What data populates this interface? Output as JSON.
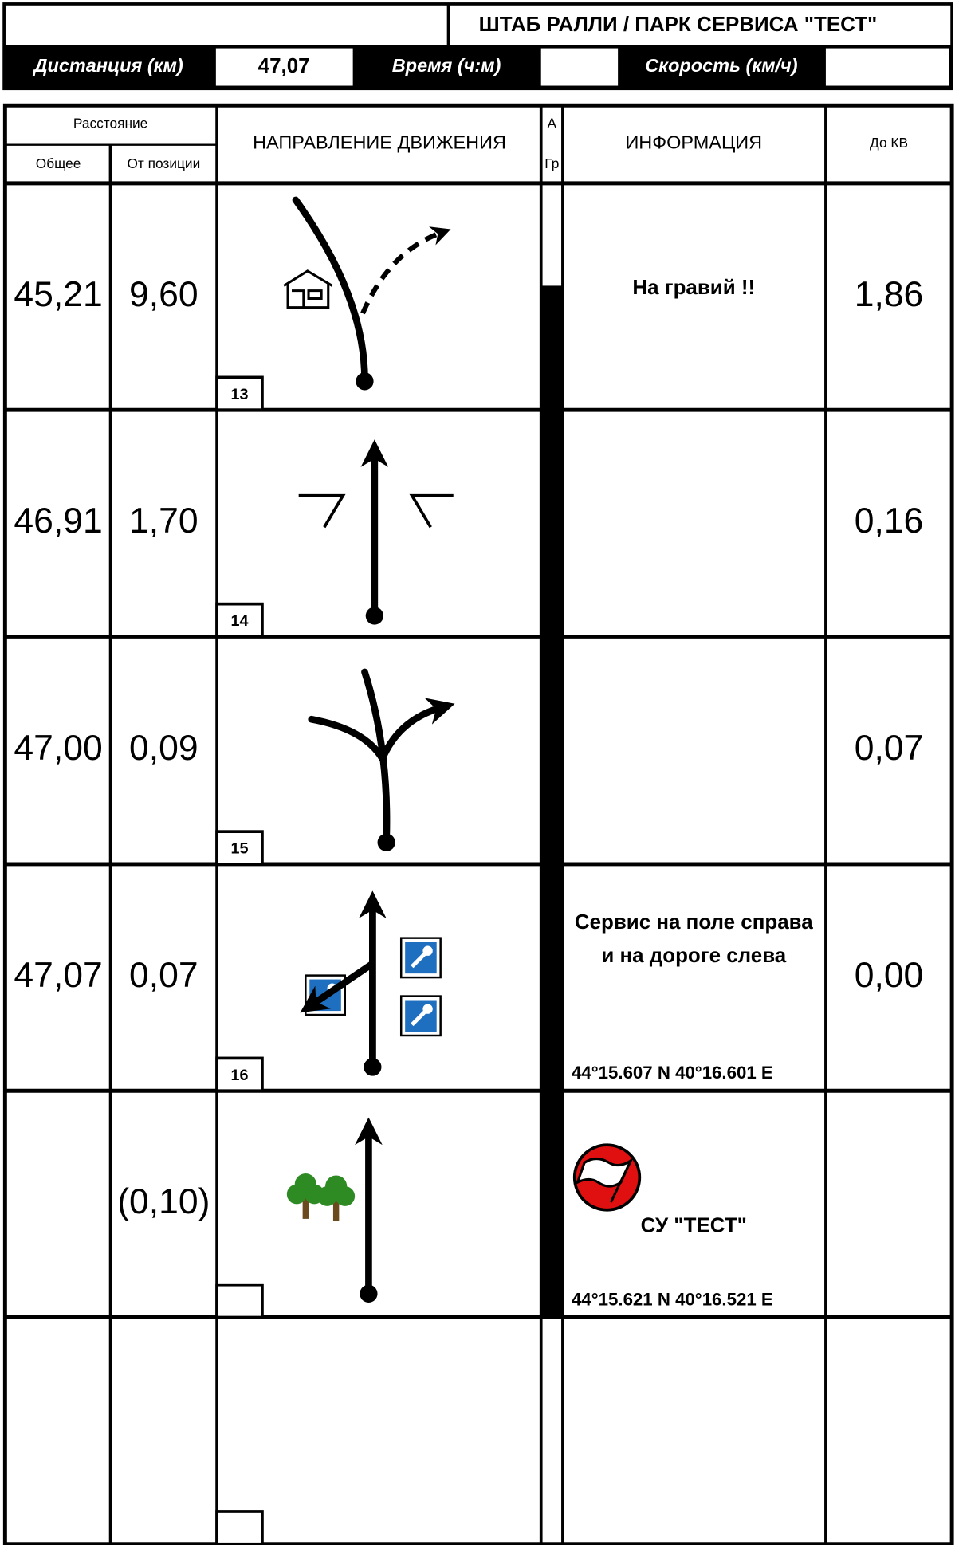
{
  "header": {
    "title": "ШТАБ РАЛЛИ / ПАРК СЕРВИСА \"ТЕСТ\"",
    "distance_label": "Дистанция (км)",
    "distance": "47,07",
    "time_label": "Время (ч:м)",
    "speed_label": "Скорость (км/ч)"
  },
  "table": {
    "headers": {
      "distance": "Расстояние",
      "total": "Общее",
      "partial": "От позиции",
      "direction": "НАПРАВЛЕНИЕ ДВИЖЕНИЯ",
      "asphalt": "А",
      "gravel": "Гр",
      "info": "ИНФОРМАЦИЯ",
      "to_cp": "До КВ"
    },
    "rows": [
      {
        "total": "45,21",
        "partial": "9,60",
        "number": "13",
        "info": [
          "На гравий !!"
        ],
        "to_cp": "1,86"
      },
      {
        "total": "46,91",
        "partial": "1,70",
        "number": "14",
        "to_cp": "0,16"
      },
      {
        "total": "47,00",
        "partial": "0,09",
        "number": "15",
        "to_cp": "0,07"
      },
      {
        "total": "47,07",
        "partial": "0,07",
        "number": "16",
        "info": [
          "Сервис на поле справа",
          "и на дороге слева"
        ],
        "coords": "44°15.607 N  40°16.601 E",
        "to_cp": "0,00"
      },
      {
        "partial": "(0,10)",
        "info": [
          "СУ \"ТЕСТ\""
        ],
        "coords": "44°15.621 N  40°16.521 E"
      }
    ]
  }
}
